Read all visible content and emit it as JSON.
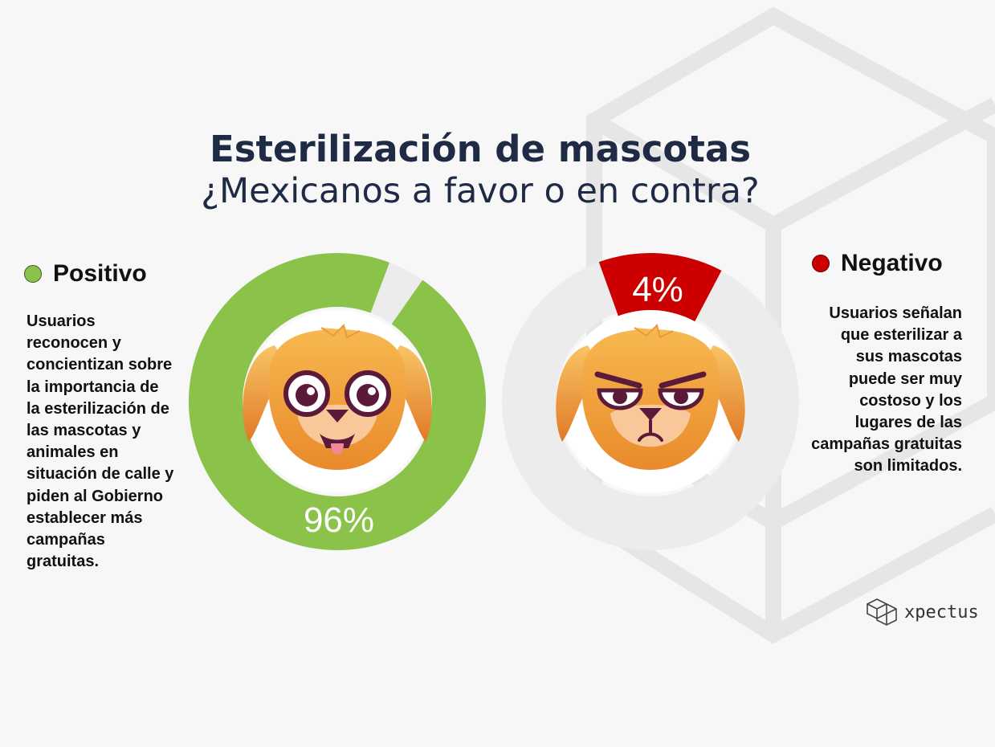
{
  "title": "Esterilización de mascotas",
  "subtitle": "¿Mexicanos a favor o en contra?",
  "positive": {
    "legend": "Positivo",
    "color": "#8bc34a",
    "description": "Usuarios reconocen y concientizan sobre la importancia de la esterilización de las mascotas y animales en situación de calle y piden al Gobierno establecer más campañas gratuitas."
  },
  "negative": {
    "legend": "Negativo",
    "color": "#cc0000",
    "description": "Usuarios señalan que esterilizar a sus mascotas puede ser muy costoso y los lugares de las campañas gratuitas son limitados."
  },
  "brand": {
    "name": "xpectus",
    "icon": "cube-logo-icon"
  },
  "chart_data": [
    {
      "type": "pie",
      "name": "Positivo",
      "values": [
        96,
        4
      ],
      "label": "96%",
      "color": "#8bc34a",
      "track": "#ececec",
      "icon": "happy-dog-icon"
    },
    {
      "type": "pie",
      "name": "Negativo",
      "values": [
        4,
        96
      ],
      "label": "4%",
      "color": "#cc0000",
      "track": "#ececec",
      "icon": "angry-dog-icon"
    }
  ]
}
